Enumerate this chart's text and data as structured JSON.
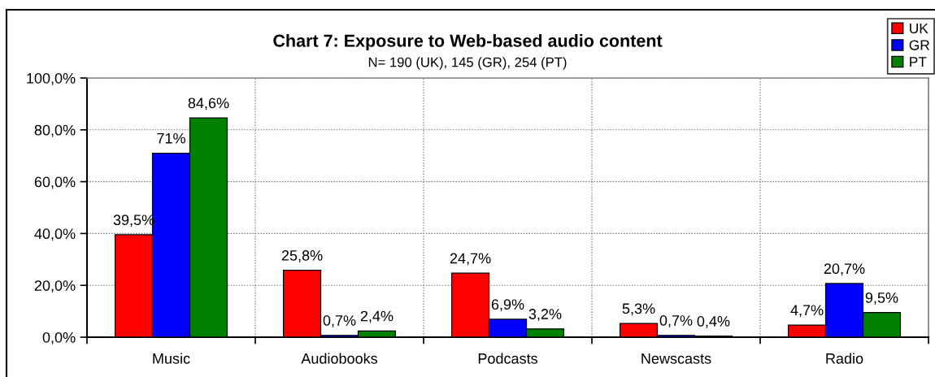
{
  "chart_data": {
    "type": "bar",
    "title": "Chart 7: Exposure to Web-based audio content",
    "subtitle": "N= 190 (UK), 145 (GR), 254 (PT)",
    "categories": [
      "Music",
      "Audiobooks",
      "Podcasts",
      "Newscasts",
      "Radio"
    ],
    "series": [
      {
        "name": "UK",
        "color": "#ff0000",
        "values": [
          39.5,
          25.8,
          24.7,
          5.3,
          4.7
        ],
        "value_labels": [
          "39,5%",
          "25,8%",
          "24,7%",
          "5,3%",
          "4,7%"
        ]
      },
      {
        "name": "GR",
        "color": "#0000ff",
        "values": [
          71,
          0.7,
          6.9,
          0.7,
          20.7
        ],
        "value_labels": [
          "71%",
          "0,7%",
          "6,9%",
          "0,7%",
          "20,7%"
        ]
      },
      {
        "name": "PT",
        "color": "#008000",
        "values": [
          84.6,
          2.4,
          3.2,
          0.4,
          9.5
        ],
        "value_labels": [
          "84,6%",
          "2,4%",
          "3,2%",
          "0,4%",
          "9,5%"
        ]
      }
    ],
    "ylim": [
      0,
      100
    ],
    "yticks": [
      {
        "value": 0,
        "label": "0,0%"
      },
      {
        "value": 20,
        "label": "20,0%"
      },
      {
        "value": 40,
        "label": "40,0%"
      },
      {
        "value": 60,
        "label": "60,0%"
      },
      {
        "value": 80,
        "label": "80,0%"
      },
      {
        "value": 100,
        "label": "100,0%"
      }
    ],
    "grid": true,
    "legend": "top right"
  }
}
